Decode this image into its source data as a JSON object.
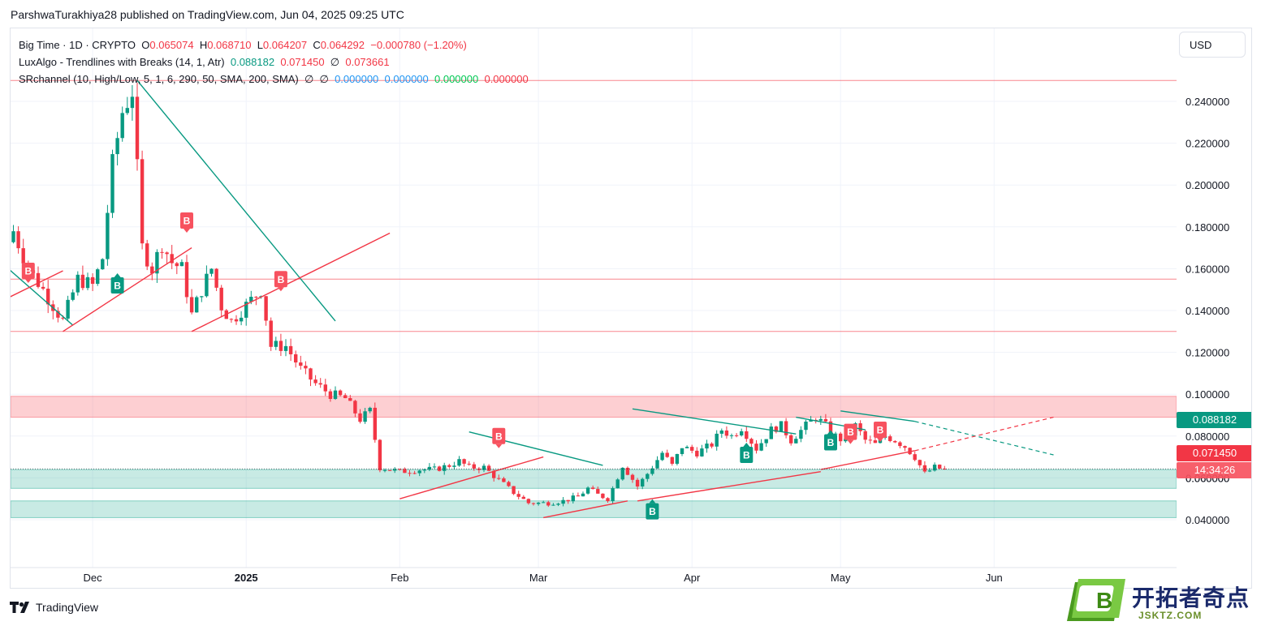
{
  "publisher_line": "ParshwaTurakhiya28 published on TradingView.com, Jun 04, 2025 09:25 UTC",
  "legend": {
    "symbol": "Big Time · 1D · CRYPTO",
    "o_label": "O",
    "o": "0.065074",
    "h_label": "H",
    "h": "0.068710",
    "l_label": "L",
    "l": "0.064207",
    "c_label": "C",
    "c": "0.064292",
    "change": "−0.000780 (−1.20%)",
    "lux_name": "LuxAlgo - Trendlines with Breaks (14, 1, Atr)",
    "lux_v1": "0.088182",
    "lux_v2": "0.071450",
    "lux_sym": "∅",
    "lux_v3": "0.073661",
    "sr_name": "SRchannel (10, High/Low, 5, 1, 6, 290, 50, SMA, 200, SMA)",
    "sr_sym1": "∅",
    "sr_sym2": "∅",
    "sr_v1": "0.000000",
    "sr_v2": "0.000000",
    "sr_v3": "0.000000",
    "sr_v4": "0.000000"
  },
  "currency_button": "USD",
  "price_tags": {
    "upper_trendline": "0.088182",
    "lower_trendline": "0.071450",
    "countdown": "14:34:26"
  },
  "branding": {
    "tv_logo_text": "TradingView",
    "wm_cn": "开拓者奇点",
    "wm_domain": "JSKTZ.COM"
  },
  "colors": {
    "up": "#089981",
    "down": "#f23645",
    "resistance_zone": "#f7525f",
    "support_zone": "#22ab94",
    "accent": "#2962ff"
  },
  "chart_data": {
    "type": "candlestick",
    "symbol": "Big Time",
    "timeframe": "1D",
    "y_ticks": [
      0.04,
      0.06,
      0.08,
      0.1,
      0.12,
      0.14,
      0.16,
      0.18,
      0.2,
      0.22,
      0.24
    ],
    "y_tick_labels": [
      "0.040000",
      "0.060000",
      "0.080000",
      "0.100000",
      "0.120000",
      "0.140000",
      "0.160000",
      "0.180000",
      "0.200000",
      "0.220000",
      "0.240000"
    ],
    "ylim": [
      0.0,
      0.26
    ],
    "x_labels": [
      "Dec",
      "2025",
      "Feb",
      "Mar",
      "Apr",
      "May",
      "Jun"
    ],
    "x_label_days": [
      16,
      47,
      78,
      106,
      137,
      167,
      198
    ],
    "last_close": 0.064292,
    "anchors": [
      [
        0,
        0.178
      ],
      [
        3,
        0.16
      ],
      [
        6,
        0.15
      ],
      [
        10,
        0.135
      ],
      [
        13,
        0.155
      ],
      [
        16,
        0.152
      ],
      [
        18,
        0.165
      ],
      [
        20,
        0.21
      ],
      [
        22,
        0.235
      ],
      [
        24,
        0.245
      ],
      [
        26,
        0.17
      ],
      [
        28,
        0.16
      ],
      [
        30,
        0.172
      ],
      [
        32,
        0.163
      ],
      [
        34,
        0.16
      ],
      [
        36,
        0.138
      ],
      [
        38,
        0.15
      ],
      [
        40,
        0.16
      ],
      [
        42,
        0.142
      ],
      [
        44,
        0.135
      ],
      [
        46,
        0.14
      ],
      [
        50,
        0.15
      ],
      [
        52,
        0.123
      ],
      [
        55,
        0.123
      ],
      [
        58,
        0.112
      ],
      [
        61,
        0.105
      ],
      [
        64,
        0.1
      ],
      [
        67,
        0.098
      ],
      [
        70,
        0.088
      ],
      [
        72,
        0.092
      ],
      [
        74,
        0.065
      ],
      [
        78,
        0.063
      ],
      [
        82,
        0.064
      ],
      [
        85,
        0.064
      ],
      [
        88,
        0.066
      ],
      [
        90,
        0.068
      ],
      [
        92,
        0.065
      ],
      [
        95,
        0.065
      ],
      [
        98,
        0.059
      ],
      [
        101,
        0.053
      ],
      [
        104,
        0.048
      ],
      [
        108,
        0.048
      ],
      [
        111,
        0.049
      ],
      [
        114,
        0.051
      ],
      [
        116,
        0.055
      ],
      [
        118,
        0.052
      ],
      [
        120,
        0.05
      ],
      [
        121,
        0.055
      ],
      [
        123,
        0.066
      ],
      [
        126,
        0.056
      ],
      [
        128,
        0.062
      ],
      [
        131,
        0.072
      ],
      [
        133,
        0.066
      ],
      [
        135,
        0.075
      ],
      [
        138,
        0.072
      ],
      [
        141,
        0.076
      ],
      [
        143,
        0.083
      ],
      [
        145,
        0.08
      ],
      [
        147,
        0.084
      ],
      [
        150,
        0.074
      ],
      [
        153,
        0.083
      ],
      [
        155,
        0.085
      ],
      [
        157,
        0.078
      ],
      [
        160,
        0.085
      ],
      [
        162,
        0.089
      ],
      [
        164,
        0.085
      ],
      [
        166,
        0.08
      ],
      [
        168,
        0.077
      ],
      [
        170,
        0.085
      ],
      [
        172,
        0.078
      ],
      [
        174,
        0.076
      ],
      [
        176,
        0.08
      ],
      [
        178,
        0.078
      ],
      [
        180,
        0.075
      ],
      [
        182,
        0.07
      ],
      [
        184,
        0.062
      ],
      [
        186,
        0.065
      ],
      [
        188,
        0.064
      ]
    ],
    "trendlines_down": [
      [
        [
          -2,
          0.162
        ],
        [
          12,
          0.133
        ]
      ],
      [
        [
          25,
          0.25
        ],
        [
          65,
          0.135
        ]
      ],
      [
        [
          92,
          0.082
        ],
        [
          119,
          0.066
        ]
      ],
      [
        [
          125,
          0.093
        ],
        [
          158,
          0.081
        ]
      ],
      [
        [
          158,
          0.089
        ],
        [
          172,
          0.083
        ]
      ],
      [
        [
          167,
          0.092
        ],
        [
          182,
          0.087
        ]
      ]
    ],
    "trendline_down_dashed": [
      [
        182,
        0.087
      ],
      [
        210,
        0.071
      ]
    ],
    "trendlines_up": [
      [
        [
          -2,
          0.145
        ],
        [
          10,
          0.159
        ]
      ],
      [
        [
          10,
          0.13
        ],
        [
          36,
          0.17
        ]
      ],
      [
        [
          36,
          0.13
        ],
        [
          76,
          0.177
        ]
      ],
      [
        [
          78,
          0.05
        ],
        [
          107,
          0.07
        ]
      ],
      [
        [
          107,
          0.041
        ],
        [
          124,
          0.049
        ]
      ],
      [
        [
          126,
          0.049
        ],
        [
          163,
          0.063
        ]
      ],
      [
        [
          163,
          0.064
        ],
        [
          182,
          0.073
        ]
      ]
    ],
    "trendline_up_dashed": [
      [
        182,
        0.073
      ],
      [
        210,
        0.089
      ]
    ],
    "sr_lines": [
      0.25,
      0.155,
      0.13
    ],
    "sr_zone_resistance": [
      0.089,
      0.099
    ],
    "sr_zone_support": [
      [
        0.055,
        0.064
      ],
      [
        0.041,
        0.049
      ]
    ],
    "breaks_down": [
      [
        3,
        0.159
      ],
      [
        35,
        0.183
      ],
      [
        54,
        0.155
      ],
      [
        98,
        0.08
      ],
      [
        169,
        0.082
      ],
      [
        175,
        0.083
      ]
    ],
    "breaks_up": [
      [
        21,
        0.152
      ],
      [
        129,
        0.044
      ],
      [
        148,
        0.071
      ],
      [
        165,
        0.077
      ]
    ]
  }
}
